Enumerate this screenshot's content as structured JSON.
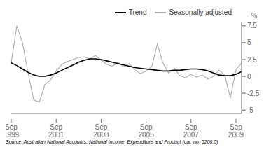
{
  "chart_data": {
    "type": "line",
    "categories": [
      "Sep\n1999",
      null,
      null,
      null,
      null,
      null,
      null,
      null,
      "Sep\n2001",
      null,
      null,
      null,
      null,
      null,
      null,
      null,
      "Sep\n2003",
      null,
      null,
      null,
      null,
      null,
      null,
      null,
      "Sep\n2005",
      null,
      null,
      null,
      null,
      null,
      null,
      null,
      "Sep\n2007",
      null,
      null,
      null,
      null,
      null,
      null,
      null,
      "Sep\n2009",
      null
    ],
    "series": [
      {
        "name": "Trend",
        "color": "#000000",
        "values": [
          2.0,
          1.6,
          1.1,
          0.6,
          0.2,
          0.0,
          0.0,
          0.2,
          0.5,
          0.9,
          1.3,
          1.7,
          2.1,
          2.4,
          2.6,
          2.6,
          2.5,
          2.3,
          2.1,
          1.9,
          1.7,
          1.5,
          1.3,
          1.2,
          1.1,
          1.0,
          0.9,
          0.8,
          0.8,
          0.9,
          0.9,
          1.0,
          1.1,
          1.1,
          1.0,
          0.8,
          0.5,
          0.2,
          0.1,
          0.1,
          0.3,
          0.7
        ]
      },
      {
        "name": "Seasonally adjusted",
        "color": "#b0b0b0",
        "values": [
          2.0,
          7.5,
          5.0,
          0.5,
          -3.5,
          -3.8,
          -1.2,
          -0.5,
          0.8,
          1.8,
          2.2,
          2.5,
          2.8,
          2.9,
          2.6,
          3.1,
          2.4,
          1.8,
          1.5,
          2.1,
          1.4,
          1.9,
          1.0,
          0.4,
          0.8,
          1.4,
          4.8,
          2.0,
          0.5,
          1.2,
          0.1,
          -0.2,
          0.3,
          -0.1,
          0.2,
          -0.4,
          0.0,
          0.9,
          0.2,
          -3.2,
          1.0,
          2.0
        ]
      }
    ],
    "ylim": [
      -5.5,
      8.0
    ],
    "yticks": [
      -5.0,
      -2.5,
      0,
      2.5,
      5.0,
      7.5
    ],
    "y_label": "%",
    "legend": "upper right",
    "annotations": [
      "Source: Australian National Accounts: National Income, Expenditure and Product (cat. no. 5206.0)"
    ]
  }
}
